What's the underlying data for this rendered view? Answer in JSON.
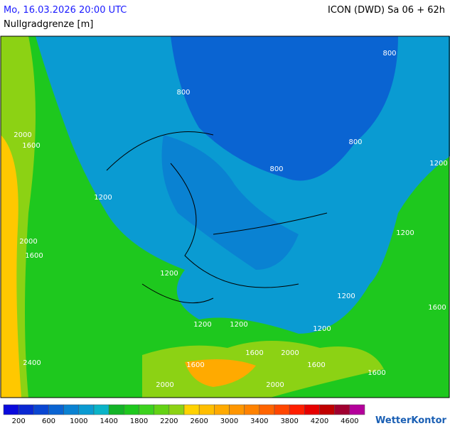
{
  "header": {
    "date": "Mo, 16.03.2026 20:00 UTC",
    "model": "ICON (DWD) Sa 06 + 62h",
    "parameter": "Nullgradgrenze [m]"
  },
  "contours": [
    800,
    800,
    800,
    800,
    1200,
    1200,
    1200,
    1200,
    1200,
    1200,
    1200,
    1200,
    1600,
    2000,
    1600,
    2000,
    1600,
    2400,
    1600,
    1600,
    1600,
    2000,
    2000,
    1600,
    2000
  ],
  "legend": {
    "labels": [
      200,
      600,
      1000,
      1400,
      1800,
      2200,
      2600,
      3000,
      3400,
      3800,
      4200,
      4600
    ],
    "colors": [
      "#0a0adc",
      "#0a28d2",
      "#0a46d2",
      "#0a64d2",
      "#0a82d2",
      "#0a9bd2",
      "#0ab4c8",
      "#14b428",
      "#1ec81e",
      "#3cd21e",
      "#64d214",
      "#8cd214",
      "#ffd200",
      "#ffbe00",
      "#ffaa00",
      "#ff9600",
      "#ff8200",
      "#ff6400",
      "#ff4600",
      "#ff1e00",
      "#e60000",
      "#c00000",
      "#a00030",
      "#b4009b"
    ]
  },
  "logo": "WetterKontor"
}
